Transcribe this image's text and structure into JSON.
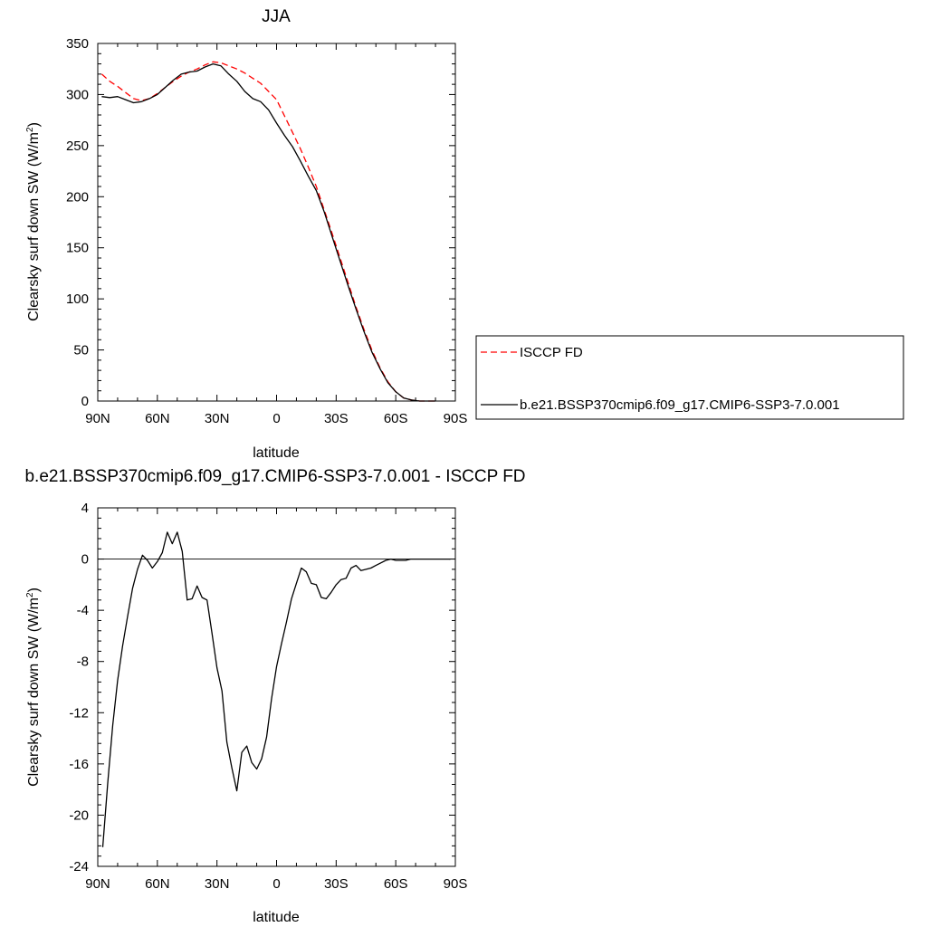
{
  "chart_data": [
    {
      "type": "line",
      "title": "JJA",
      "xlabel": "latitude",
      "ylabel": "Clearsky surf down SW (W/m",
      "ylabel_superscript": "2",
      "ylabel_suffix": ")",
      "xlim": [
        90,
        -90
      ],
      "ylim": [
        0,
        350
      ],
      "xticks": [
        90,
        60,
        30,
        0,
        -30,
        -60,
        -90
      ],
      "xtick_labels": [
        "90N",
        "60N",
        "30N",
        "0",
        "30S",
        "60S",
        "90S"
      ],
      "yticks": [
        0,
        50,
        100,
        150,
        200,
        250,
        300,
        350
      ],
      "ytick_labels": [
        "0",
        "50",
        "100",
        "150",
        "200",
        "250",
        "300",
        "350"
      ],
      "legend_position": "right",
      "series": [
        {
          "name": "ISCCP FD",
          "color": "#ff0000",
          "style": "dashed",
          "x": [
            88,
            84,
            80,
            76,
            72,
            68,
            64,
            60,
            56,
            52,
            48,
            44,
            40,
            36,
            32,
            28,
            24,
            20,
            16,
            12,
            8,
            4,
            0,
            -4,
            -8,
            -12,
            -16,
            -20,
            -24,
            -28,
            -32,
            -36,
            -40,
            -44,
            -48,
            -52,
            -56,
            -60,
            -64,
            -68,
            -72,
            -76,
            -80
          ],
          "y": [
            320,
            313,
            308,
            302,
            296,
            294,
            296,
            301,
            307,
            313,
            318,
            322,
            325,
            329,
            332,
            331,
            328,
            325,
            321,
            316,
            311,
            303,
            295,
            279,
            263,
            247,
            229,
            210,
            187,
            164,
            140,
            116,
            92,
            70,
            50,
            33,
            19,
            9,
            3,
            1,
            0,
            0,
            0
          ]
        },
        {
          "name": "b.e21.BSSP370cmip6.f09_g17.CMIP6-SSP3-7.0.001",
          "color": "#000000",
          "style": "solid",
          "x": [
            88,
            84,
            80,
            76,
            72,
            68,
            64,
            60,
            56,
            52,
            48,
            44,
            40,
            36,
            32,
            28,
            24,
            20,
            16,
            12,
            8,
            4,
            0,
            -4,
            -8,
            -12,
            -16,
            -20,
            -24,
            -28,
            -32,
            -36,
            -40,
            -44,
            -48,
            -52,
            -56,
            -60,
            -64,
            -68,
            -72,
            -76,
            -80
          ],
          "y": [
            298,
            297,
            298,
            295,
            292,
            293,
            296,
            300,
            307,
            314,
            320,
            322,
            323,
            327,
            330,
            328,
            320,
            313,
            303,
            296,
            293,
            285,
            272,
            260,
            249,
            235,
            220,
            206,
            185,
            161,
            137,
            113,
            90,
            68,
            48,
            32,
            18,
            9,
            3,
            1,
            0,
            0,
            0
          ]
        }
      ]
    },
    {
      "type": "line",
      "title": "b.e21.BSSP370cmip6.f09_g17.CMIP6-SSP3-7.0.001 - ISCCP FD",
      "xlabel": "latitude",
      "ylabel": "Clearsky surf down SW (W/m",
      "ylabel_superscript": "2",
      "ylabel_suffix": ")",
      "xlim": [
        90,
        -90
      ],
      "ylim": [
        -24,
        4
      ],
      "xticks": [
        90,
        60,
        30,
        0,
        -30,
        -60,
        -90
      ],
      "xtick_labels": [
        "90N",
        "60N",
        "30N",
        "0",
        "30S",
        "60S",
        "90S"
      ],
      "yticks": [
        -24,
        -20,
        -16,
        -12,
        -8,
        -4,
        0,
        4
      ],
      "ytick_labels": [
        "-24",
        "-20",
        "-16",
        "-12",
        "-8",
        "-4",
        "0",
        "4"
      ],
      "series": [
        {
          "name": "",
          "color": "#000000",
          "style": "solid",
          "x": [
            87.5,
            85,
            82.5,
            80,
            77.5,
            75,
            72.5,
            70,
            67.5,
            65,
            62.5,
            60,
            57.5,
            55,
            52.5,
            50,
            47.5,
            45,
            42.5,
            40,
            37.5,
            35,
            32.5,
            30,
            27.5,
            25,
            22.5,
            20,
            17.5,
            15,
            12.5,
            10,
            7.5,
            5,
            2.5,
            0,
            -2.5,
            -5,
            -7.5,
            -10,
            -12.5,
            -15,
            -17.5,
            -20,
            -22.5,
            -25,
            -27.5,
            -30,
            -32.5,
            -35,
            -37.5,
            -40,
            -42.5,
            -45,
            -47.5,
            -50,
            -52.5,
            -55,
            -57.5,
            -60,
            -62.5,
            -65,
            -67.5,
            -70,
            -72.5,
            -75,
            -77.5,
            -80,
            -82.5,
            -85,
            -87.5
          ],
          "y": [
            -22.5,
            -17.5,
            -13,
            -9.5,
            -6.8,
            -4.5,
            -2.3,
            -0.8,
            0.3,
            -0.1,
            -0.7,
            -0.2,
            0.5,
            2.1,
            1.2,
            2.1,
            0.6,
            -3.2,
            -3.1,
            -2.1,
            -3.0,
            -3.2,
            -5.8,
            -8.5,
            -10.3,
            -14.3,
            -16.3,
            -18.1,
            -15.1,
            -14.6,
            -15.9,
            -16.4,
            -15.6,
            -13.9,
            -10.9,
            -8.4,
            -6.6,
            -4.9,
            -3.1,
            -1.9,
            -0.7,
            -1.0,
            -1.9,
            -2.0,
            -3.0,
            -3.1,
            -2.6,
            -2.0,
            -1.6,
            -1.5,
            -0.7,
            -0.5,
            -0.9,
            -0.8,
            -0.7,
            -0.5,
            -0.3,
            -0.1,
            0.0,
            -0.1,
            -0.1,
            -0.1,
            0.0,
            0.0,
            0.0,
            0.0,
            0.0,
            0.0,
            0.0,
            0.0,
            0.0
          ]
        }
      ]
    }
  ]
}
